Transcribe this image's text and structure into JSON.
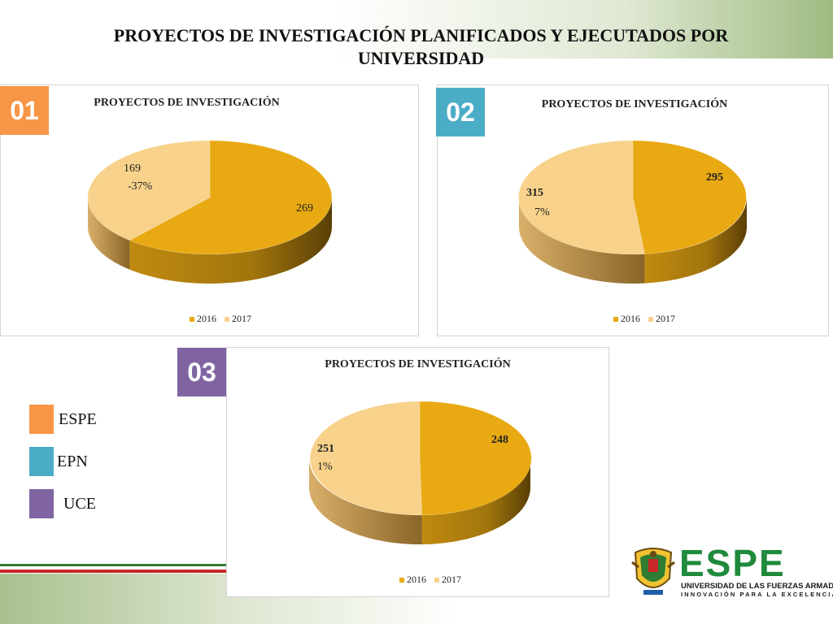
{
  "page": {
    "title": "PROYECTOS DE INVESTIGACIÓN PLANIFICADOS Y EJECUTADOS POR UNIVERSIDAD"
  },
  "colors": {
    "slice_2016": "#e8a912",
    "slice_2017": "#f8d28b",
    "espe": "#f79646",
    "epn": "#4bacc6",
    "uce": "#8064a2"
  },
  "university_legend": [
    {
      "label": "ESPE",
      "color": "#f79646"
    },
    {
      "label": "EPN",
      "color": "#4bacc6"
    },
    {
      "label": "UCE",
      "color": "#8064a2"
    }
  ],
  "chart_data": [
    {
      "type": "pie",
      "badge": "01",
      "badge_color": "#f79646",
      "title": "PROYECTOS DE INVESTIGACIÓN",
      "categories": [
        "2016",
        "2017"
      ],
      "values": [
        269,
        169
      ],
      "change_label": "-37%",
      "legend": [
        "2016",
        "2017"
      ],
      "legend_position": "bottom"
    },
    {
      "type": "pie",
      "badge": "02",
      "badge_color": "#4bacc6",
      "title": "PROYECTOS DE INVESTIGACIÓN",
      "categories": [
        "2016",
        "2017"
      ],
      "values": [
        295,
        315
      ],
      "change_label": "7%",
      "legend": [
        "2016",
        "2017"
      ],
      "legend_position": "bottom"
    },
    {
      "type": "pie",
      "badge": "03",
      "badge_color": "#8064a2",
      "title": "PROYECTOS DE INVESTIGACIÓN",
      "categories": [
        "2016",
        "2017"
      ],
      "values": [
        248,
        251
      ],
      "change_label": "1%",
      "legend": [
        "2016",
        "2017"
      ],
      "legend_position": "bottom"
    }
  ],
  "logo": {
    "name": "ESPE",
    "line1": "UNIVERSIDAD DE LAS FUERZAS ARMADAS",
    "line2": "INNOVACIÓN PARA LA EXCELENCIA"
  }
}
